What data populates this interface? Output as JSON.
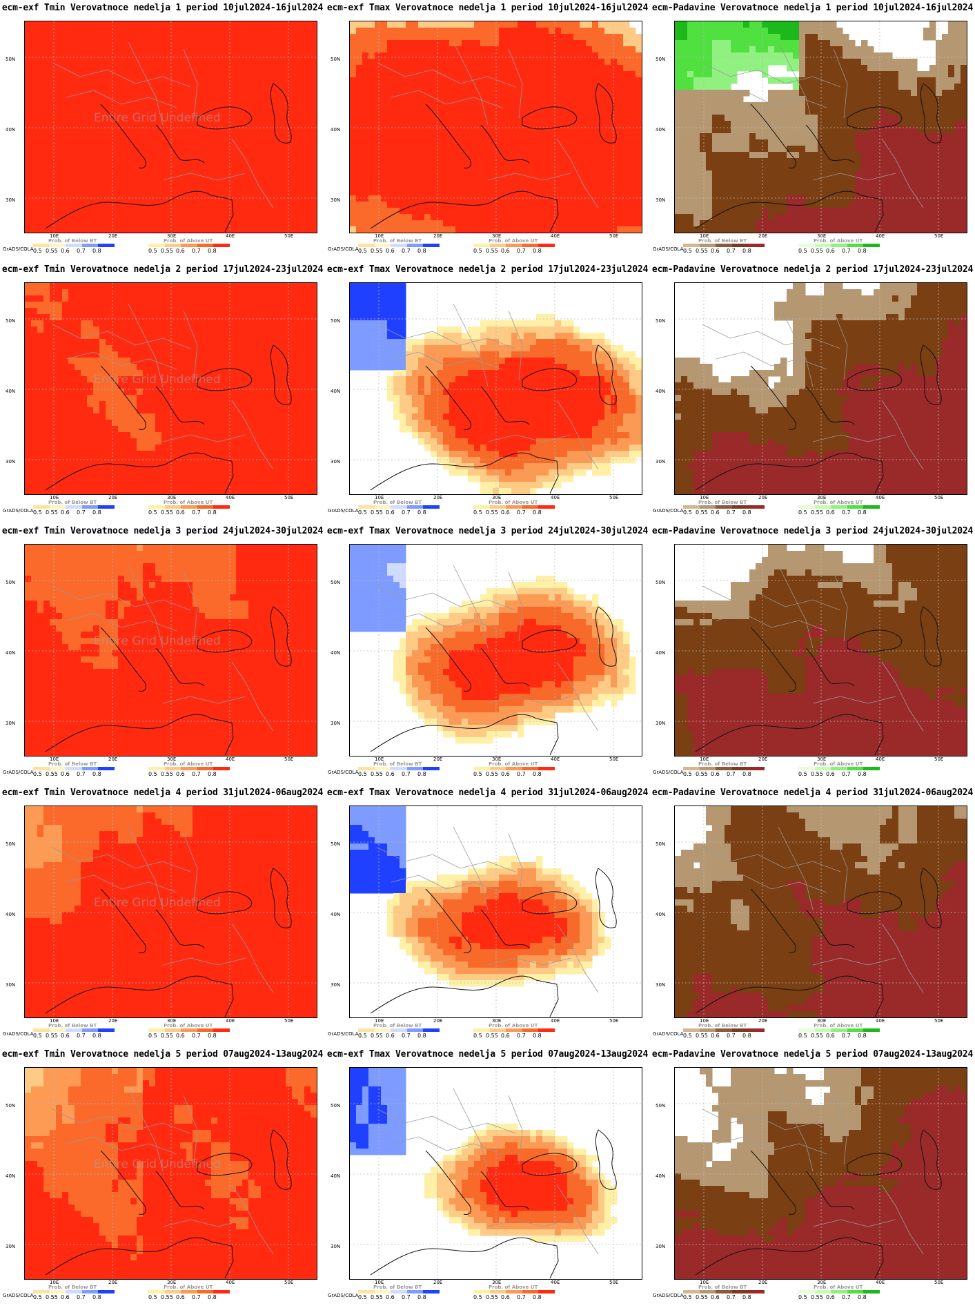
{
  "grid_label": "GrADS/COLA",
  "undefined_label": "Entire Grid Undefined",
  "lat_labels": [
    "50N",
    "40N",
    "30N"
  ],
  "lon_labels": [
    "10E",
    "20E",
    "30E",
    "40E",
    "50E"
  ],
  "legend_ticks": [
    "0.5",
    "0.55",
    "0.6",
    "0.7",
    "0.8"
  ],
  "legends": {
    "temp_below": {
      "title": "Prob. of Below BT",
      "colors": [
        "#fde3a0",
        "#fff5c4",
        "#cfdcff",
        "#7e9cff",
        "#2040ff"
      ]
    },
    "temp_above": {
      "title": "Prob. of Above UT",
      "colors": [
        "#fff0a8",
        "#fdcb86",
        "#fb9a54",
        "#f86a2a",
        "#ff2a10"
      ]
    },
    "prec_below": {
      "title": "Prob. of Below BT",
      "colors": [
        "#d2b890",
        "#b59872",
        "#8a5a3a",
        "#7a3a20",
        "#9a2a2a"
      ]
    },
    "prec_above": {
      "title": "Prob. of Above UT",
      "colors": [
        "#e6ffd8",
        "#c4ffb0",
        "#90f080",
        "#50e040",
        "#1cb81c"
      ]
    }
  },
  "panels": [
    {
      "title": "ecm-exf Tmin Verovatnoce nedelja 1 period 10jul2024-16jul2024",
      "variable": "tmin",
      "week": 1,
      "show_undefined": true
    },
    {
      "title": "ecm-exf Tmax Verovatnoce nedelja 1 period 10jul2024-16jul2024",
      "variable": "tmax",
      "week": 1,
      "show_undefined": false
    },
    {
      "title": "ecm-Padavine Verovatnoce nedelja 1 period 10jul2024-16jul2024",
      "variable": "precip",
      "week": 1,
      "show_undefined": false
    },
    {
      "title": "ecm-exf Tmin Verovatnoce nedelja 2 period 17jul2024-23jul2024",
      "variable": "tmin",
      "week": 2,
      "show_undefined": true
    },
    {
      "title": "ecm-exf Tmax Verovatnoce nedelja 2 period 17jul2024-23jul2024",
      "variable": "tmax",
      "week": 2,
      "show_undefined": false
    },
    {
      "title": "ecm-Padavine Verovatnoce nedelja 2 period 17jul2024-23jul2024",
      "variable": "precip",
      "week": 2,
      "show_undefined": false
    },
    {
      "title": "ecm-exf Tmin Verovatnoce nedelja 3 period 24jul2024-30jul2024",
      "variable": "tmin",
      "week": 3,
      "show_undefined": true
    },
    {
      "title": "ecm-exf Tmax Verovatnoce nedelja 3 period 24jul2024-30jul2024",
      "variable": "tmax",
      "week": 3,
      "show_undefined": false
    },
    {
      "title": "ecm-Padavine Verovatnoce nedelja 3 period 24jul2024-30jul2024",
      "variable": "precip",
      "week": 3,
      "show_undefined": false
    },
    {
      "title": "ecm-exf Tmin Verovatnoce nedelja 4 period 31jul2024-06aug2024",
      "variable": "tmin",
      "week": 4,
      "show_undefined": true
    },
    {
      "title": "ecm-exf Tmax Verovatnoce nedelja 4 period 31jul2024-06aug2024",
      "variable": "tmax",
      "week": 4,
      "show_undefined": false
    },
    {
      "title": "ecm-Padavine Verovatnoce nedelja 4 period 31jul2024-06aug2024",
      "variable": "precip",
      "week": 4,
      "show_undefined": false
    },
    {
      "title": "ecm-exf Tmin Verovatnoce nedelja 5 period 07aug2024-13aug2024",
      "variable": "tmin",
      "week": 5,
      "show_undefined": true
    },
    {
      "title": "ecm-exf Tmax Verovatnoce nedelja 5 period 07aug2024-13aug2024",
      "variable": "tmax",
      "week": 5,
      "show_undefined": false
    },
    {
      "title": "ecm-Padavine Verovatnoce nedelja 5 period 07aug2024-13aug2024",
      "variable": "precip",
      "week": 5,
      "show_undefined": false
    }
  ]
}
